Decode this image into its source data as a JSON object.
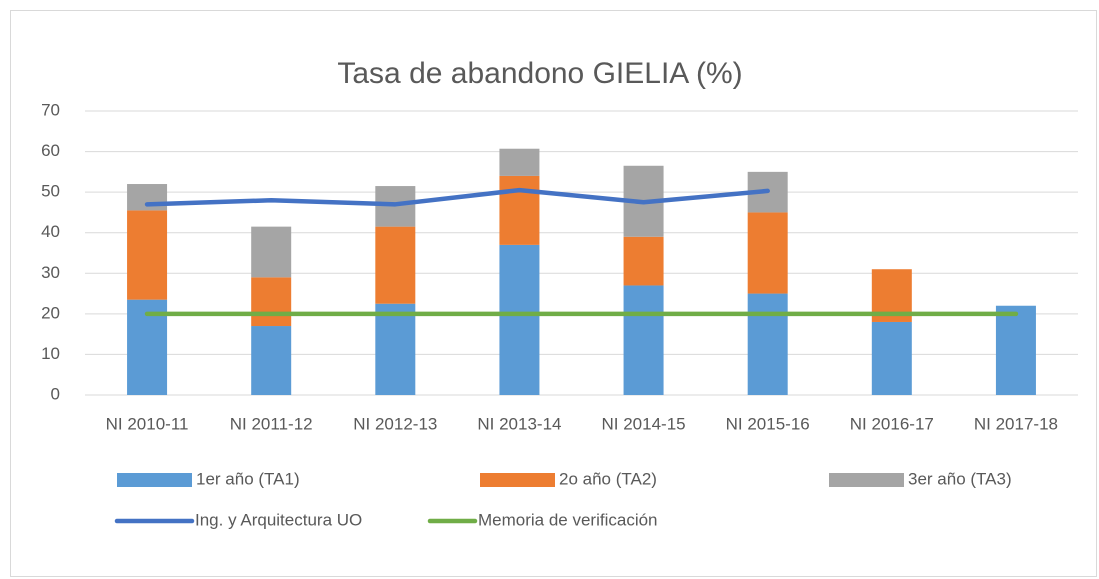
{
  "chart_data": {
    "type": "bar",
    "stacked": true,
    "title": "Tasa de abandono GIELIA (%)",
    "categories": [
      "NI 2010-11",
      "NI 2011-12",
      "NI 2012-13",
      "NI 2013-14",
      "NI 2014-15",
      "NI 2015-16",
      "NI 2016-17",
      "NI 2017-18"
    ],
    "series": [
      {
        "name": "1er año (TA1)",
        "color": "#5b9bd5",
        "values": [
          23.5,
          17,
          22.5,
          37,
          27,
          25,
          18,
          22
        ]
      },
      {
        "name": "2o año (TA2)",
        "color": "#ed7d31",
        "values": [
          22,
          12,
          19,
          17,
          12,
          20,
          13,
          null
        ]
      },
      {
        "name": "3er año (TA3)",
        "color": "#a5a5a5",
        "values": [
          6.5,
          12.5,
          10,
          6.7,
          17.5,
          10,
          null,
          null
        ]
      },
      {
        "name": "Ing. y Arquitectura UO",
        "type": "line",
        "color": "#4472c4",
        "values": [
          47,
          48,
          47,
          50.5,
          47.5,
          50.3,
          null,
          null
        ]
      },
      {
        "name": "Memoria de verificación",
        "type": "line",
        "color": "#70ad47",
        "values": [
          20,
          20,
          20,
          20,
          20,
          20,
          20,
          20
        ]
      }
    ],
    "ylim": [
      0,
      70
    ],
    "yticks": [
      0,
      10,
      20,
      30,
      40,
      50,
      60,
      70
    ],
    "grid": true,
    "legend": "bottom"
  }
}
